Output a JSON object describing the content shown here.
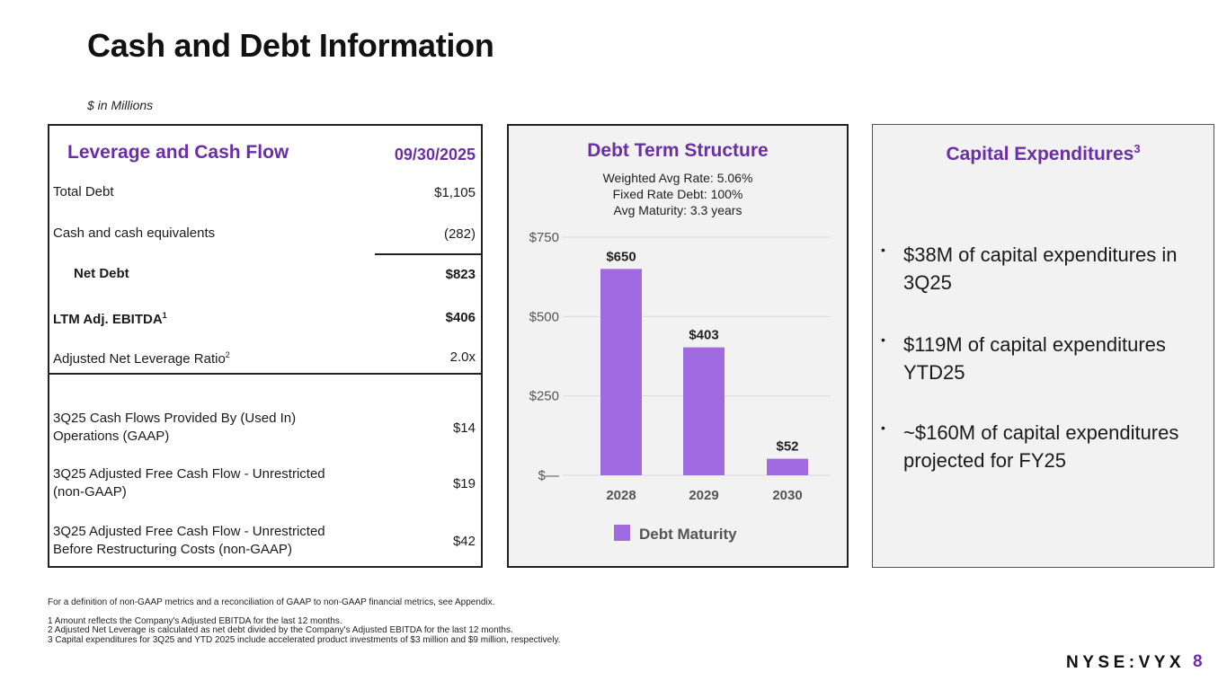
{
  "page": {
    "title": "Cash and Debt Information",
    "subtitle": "$ in Millions",
    "brand": "NYSE:VYX",
    "page_number": "8"
  },
  "leverage": {
    "heading": "Leverage and Cash Flow",
    "date": "09/30/2025",
    "rows": [
      {
        "label": "Total Debt",
        "value": "$1,105"
      },
      {
        "label": "Cash and cash equivalents",
        "value": "(282)"
      },
      {
        "label": "Net Debt",
        "value": "$823"
      },
      {
        "label": "LTM Adj. EBITDA",
        "sup": "1",
        "value": "$406"
      },
      {
        "label": "Adjusted Net Leverage Ratio",
        "sup": "2",
        "value": "2.0x"
      },
      {
        "label": "3Q25 Cash Flows Provided By (Used In) Operations (GAAP)",
        "value": "$14"
      },
      {
        "label": "3Q25 Adjusted Free Cash Flow - Unrestricted (non-GAAP)",
        "value": "$19"
      },
      {
        "label": "3Q25 Adjusted Free Cash Flow - Unrestricted Before Restructuring Costs (non-GAAP)",
        "value": "$42"
      }
    ]
  },
  "debt": {
    "heading": "Debt Term Structure",
    "info": [
      "Weighted Avg Rate: 5.06%",
      "Fixed Rate Debt: 100%",
      "Avg Maturity: 3.3 years"
    ]
  },
  "capex": {
    "heading": "Capital Expenditures",
    "heading_sup": "3",
    "bullets": [
      "$38M of capital expenditures in 3Q25",
      "$119M of capital expenditures YTD25",
      "~$160M of capital expenditures projected for FY25"
    ]
  },
  "footnotes": {
    "intro": "For a definition of non-GAAP metrics and a reconciliation of GAAP to non-GAAP financial metrics, see Appendix.",
    "notes": [
      "1 Amount reflects the Company's Adjusted EBITDA for the last 12 months.",
      "2 Adjusted Net Leverage is calculated as net debt divided by the Company's Adjusted EBITDA for the last 12 months.",
      "3 Capital expenditures for 3Q25 and YTD 2025 include accelerated product investments of $3 million and $9 million, respectively."
    ]
  },
  "colors": {
    "accent": "#6a2ea6",
    "bar": "#a06ae0",
    "gridline": "#dcdcdc"
  },
  "chart_data": {
    "type": "bar",
    "title": "Debt Term Structure",
    "categories": [
      "2028",
      "2029",
      "2030"
    ],
    "series": [
      {
        "name": "Debt Maturity",
        "values": [
          650,
          403,
          52
        ]
      }
    ],
    "data_labels": [
      "$650",
      "$403",
      "$52"
    ],
    "y_ticks": [
      0,
      250,
      500,
      750
    ],
    "y_tick_labels": [
      "$—",
      "$250",
      "$500",
      "$750"
    ],
    "ylim": [
      0,
      750
    ],
    "legend": "bottom-center",
    "grid": true
  }
}
